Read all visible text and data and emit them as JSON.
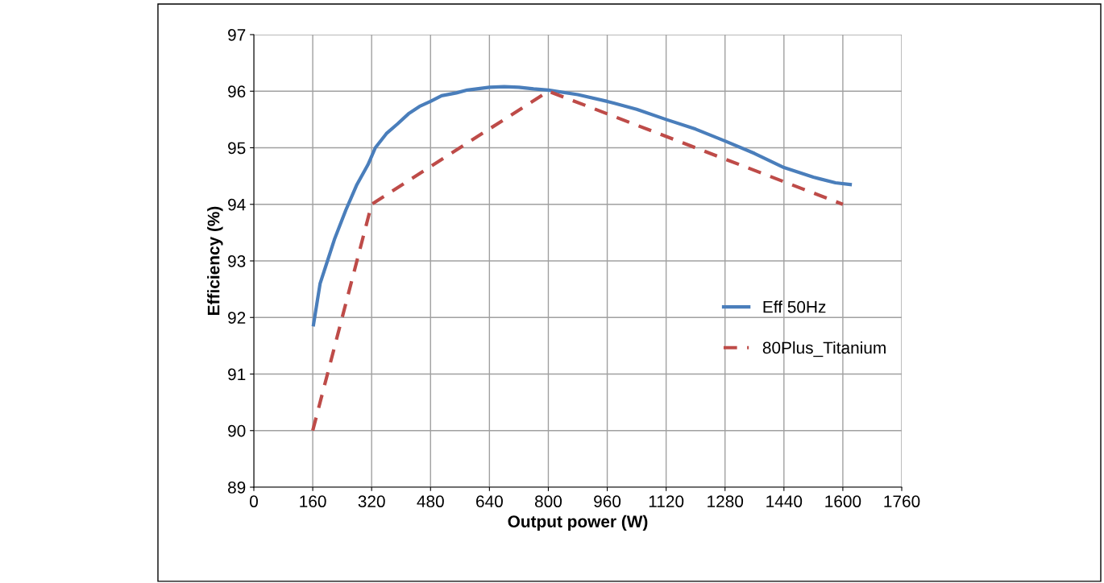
{
  "chart_data": {
    "type": "line",
    "xlabel": "Output power (W)",
    "ylabel": "Efficiency (%)",
    "xlim": [
      0,
      1760
    ],
    "xticks": [
      0,
      160,
      320,
      480,
      640,
      800,
      960,
      1120,
      1280,
      1440,
      1600,
      1760
    ],
    "ylim": [
      89,
      97
    ],
    "yticks": [
      89,
      90,
      91,
      92,
      93,
      94,
      95,
      96,
      97
    ],
    "grid": true,
    "legend": "right",
    "marker": "none",
    "series": [
      {
        "name": "Eff 50Hz",
        "color": "#4a7ebb",
        "line_style": "solid",
        "x": [
          162,
          180,
          200,
          220,
          250,
          280,
          310,
          330,
          360,
          390,
          420,
          450,
          480,
          510,
          550,
          580,
          640,
          680,
          720,
          760,
          800,
          880,
          960,
          1040,
          1120,
          1200,
          1280,
          1360,
          1440,
          1520,
          1580,
          1620
        ],
        "values": [
          91.87,
          92.6,
          93.0,
          93.4,
          93.9,
          94.35,
          94.7,
          95.0,
          95.25,
          95.42,
          95.6,
          95.73,
          95.82,
          95.92,
          95.97,
          96.02,
          96.07,
          96.08,
          96.07,
          96.04,
          96.02,
          95.94,
          95.82,
          95.68,
          95.5,
          95.33,
          95.12,
          94.9,
          94.65,
          94.48,
          94.38,
          94.35
        ]
      },
      {
        "name": "80Plus_Titanium",
        "color": "#be4b48",
        "line_style": "dashed",
        "x": [
          160,
          320,
          800,
          1600
        ],
        "values": [
          90,
          94,
          96,
          94
        ]
      }
    ]
  }
}
